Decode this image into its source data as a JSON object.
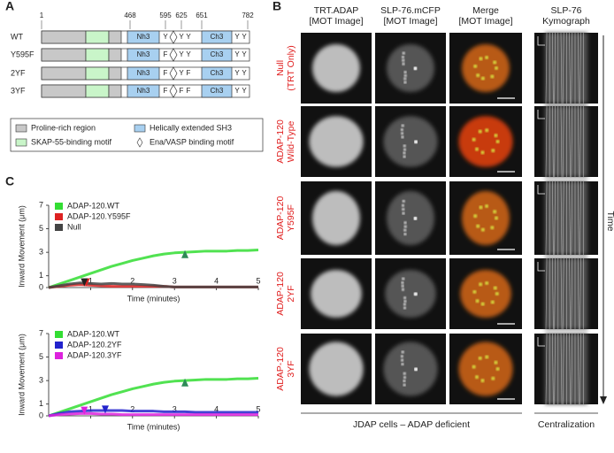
{
  "panel_labels": [
    "A",
    "B",
    "C"
  ],
  "panel_a": {
    "positions": [
      "1",
      "468",
      "595",
      "625",
      "651",
      "782"
    ],
    "domains": [
      "Nh3",
      "Ch3"
    ],
    "rows": [
      {
        "name": "WT",
        "sites": [
          "Y",
          "Y",
          "Y",
          "Y",
          "Y"
        ]
      },
      {
        "name": "Y595F",
        "sites": [
          "F",
          "Y",
          "Y",
          "Y",
          "Y"
        ]
      },
      {
        "name": "2YF",
        "sites": [
          "F",
          "Y",
          "F",
          "Y",
          "Y"
        ]
      },
      {
        "name": "3YF",
        "sites": [
          "F",
          "F",
          "F",
          "Y",
          "Y"
        ]
      }
    ],
    "legend": [
      "Proline-rich region",
      "SKAP-55-binding motif",
      "Helically extended SH3",
      "Ena/VASP binding motif"
    ]
  },
  "panel_b": {
    "columns": [
      {
        "lines": [
          "TRT.ADAP",
          "[MOT Image]"
        ],
        "color": "#e02020"
      },
      {
        "lines": [
          "SLP-76.mCFP",
          "[MOT Image]"
        ],
        "color": "#1a9a1a"
      },
      {
        "lines": [
          "Merge",
          "[MOT Image]"
        ],
        "color": "#222222"
      },
      {
        "lines": [
          "SLP-76",
          "Kymograph"
        ],
        "color": "#222222"
      }
    ],
    "rows": [
      {
        "lines": [
          "Null",
          "(TRT Only)"
        ]
      },
      {
        "lines": [
          "ADAP-120",
          "Wild-Type"
        ]
      },
      {
        "lines": [
          "ADAP-120",
          "Y595F"
        ]
      },
      {
        "lines": [
          "ADAP-120",
          "2YF"
        ]
      },
      {
        "lines": [
          "ADAP-120",
          "3YF"
        ]
      }
    ],
    "footer": "JDAP cells – ADAP deficient",
    "footer_kymo": "Centralization",
    "time": "Time"
  },
  "chart_data": [
    {
      "type": "line",
      "ylabel": "Inward Movement (μm)",
      "xlabel": "Time (minutes)",
      "x": [
        0,
        0.25,
        0.5,
        0.75,
        1,
        1.25,
        1.5,
        1.75,
        2,
        2.25,
        2.5,
        2.75,
        3,
        3.25,
        3.5,
        3.75,
        4,
        4.25,
        4.5,
        4.75,
        5
      ],
      "xlim": [
        0,
        5
      ],
      "ylim": [
        0,
        7
      ],
      "xticks": [
        1,
        2,
        3,
        4,
        5
      ],
      "yticks": [
        0,
        1,
        3,
        5,
        7
      ],
      "series": [
        {
          "name": "ADAP-120.WT",
          "color": "#33dd33",
          "values": [
            0,
            0.3,
            0.6,
            0.9,
            1.2,
            1.5,
            1.8,
            2.05,
            2.3,
            2.5,
            2.7,
            2.85,
            2.95,
            3.0,
            3.05,
            3.1,
            3.1,
            3.1,
            3.15,
            3.15,
            3.2
          ]
        },
        {
          "name": "ADAP-120.Y595F",
          "color": "#dd2222",
          "values": [
            0,
            0.1,
            0.2,
            0.25,
            0.2,
            0.15,
            0.1,
            0.1,
            0.1,
            0.1,
            0.1,
            0.1,
            0.05,
            0.05,
            0.05,
            0.05,
            0.05,
            0.05,
            0.05,
            0.05,
            0.05
          ]
        },
        {
          "name": "Null",
          "color": "#444444",
          "values": [
            0,
            0.15,
            0.3,
            0.4,
            0.35,
            0.3,
            0.35,
            0.3,
            0.3,
            0.25,
            0.2,
            0.1,
            0.05,
            0.05,
            0.05,
            0.05,
            0.05,
            0.05,
            0.05,
            0.05,
            0.05
          ]
        }
      ],
      "arrowheads": [
        {
          "x": 3.25,
          "y": 2.8,
          "color": "#2e8b57",
          "direction": "up"
        },
        {
          "x": 0.9,
          "y": 0.4,
          "color": "#dd2222",
          "direction": "down"
        },
        {
          "x": 0.85,
          "y": 0.4,
          "color": "#222222",
          "direction": "down"
        }
      ]
    },
    {
      "type": "line",
      "ylabel": "Inward Movement (μm)",
      "xlabel": "Time (minutes)",
      "x": [
        0,
        0.25,
        0.5,
        0.75,
        1,
        1.25,
        1.5,
        1.75,
        2,
        2.25,
        2.5,
        2.75,
        3,
        3.25,
        3.5,
        3.75,
        4,
        4.25,
        4.5,
        4.75,
        5
      ],
      "xlim": [
        0,
        5
      ],
      "ylim": [
        0,
        7
      ],
      "xticks": [
        1,
        2,
        3,
        4,
        5
      ],
      "yticks": [
        0,
        1,
        3,
        5,
        7
      ],
      "series": [
        {
          "name": "ADAP-120.WT",
          "color": "#33dd33",
          "values": [
            0,
            0.3,
            0.6,
            0.9,
            1.2,
            1.5,
            1.8,
            2.05,
            2.3,
            2.5,
            2.7,
            2.85,
            2.95,
            3.0,
            3.05,
            3.1,
            3.1,
            3.1,
            3.15,
            3.15,
            3.2
          ]
        },
        {
          "name": "ADAP-120.2YF",
          "color": "#2222cc",
          "values": [
            0,
            0.2,
            0.35,
            0.4,
            0.45,
            0.45,
            0.45,
            0.45,
            0.4,
            0.4,
            0.4,
            0.35,
            0.35,
            0.35,
            0.3,
            0.3,
            0.3,
            0.3,
            0.3,
            0.3,
            0.3
          ]
        },
        {
          "name": "ADAP-120.3YF",
          "color": "#dd22dd",
          "values": [
            0,
            0.1,
            0.15,
            0.2,
            0.2,
            0.15,
            0.15,
            0.1,
            0.1,
            0.1,
            0.1,
            0.1,
            0.1,
            0.1,
            0.1,
            0.1,
            0.1,
            0.1,
            0.1,
            0.1,
            0.1
          ]
        }
      ],
      "arrowheads": [
        {
          "x": 3.25,
          "y": 2.8,
          "color": "#2e8b57",
          "direction": "up"
        },
        {
          "x": 0.85,
          "y": 0.4,
          "color": "#dd22dd",
          "direction": "down"
        },
        {
          "x": 1.35,
          "y": 0.5,
          "color": "#2222cc",
          "direction": "down"
        }
      ]
    }
  ]
}
